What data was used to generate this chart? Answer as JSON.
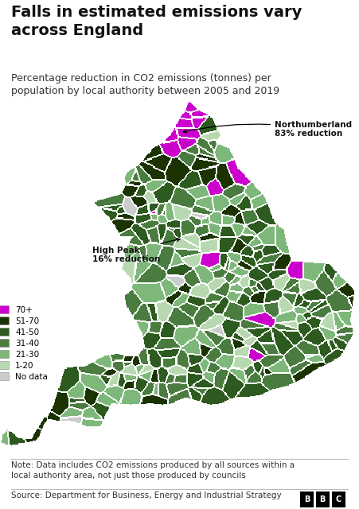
{
  "title": "Falls in estimated emissions vary\nacross England",
  "subtitle": "Percentage reduction in CO2 emissions (tonnes) per\npopulation by local authority between 2005 and 2019",
  "note": "Note: Data includes CO2 emissions produced by all sources within a\nlocal authority area, not just those produced by councils",
  "source": "Source: Department for Business, Energy and Industrial Strategy",
  "legend_labels": [
    "70+",
    "51-70",
    "41-50",
    "31-40",
    "21-30",
    "1-20",
    "No data"
  ],
  "legend_colors": [
    "#cc00cc",
    "#1a3300",
    "#2d5a1e",
    "#4a7c3f",
    "#7db87a",
    "#b8d9b0",
    "#cccccc"
  ],
  "background_color": "#ffffff",
  "title_fontsize": 14,
  "subtitle_fontsize": 9,
  "note_fontsize": 7.5,
  "source_fontsize": 7.5,
  "annotation_northumberland": "Northumberland\n83% reduction",
  "annotation_highpeak": "High Peak\n16% reduction"
}
